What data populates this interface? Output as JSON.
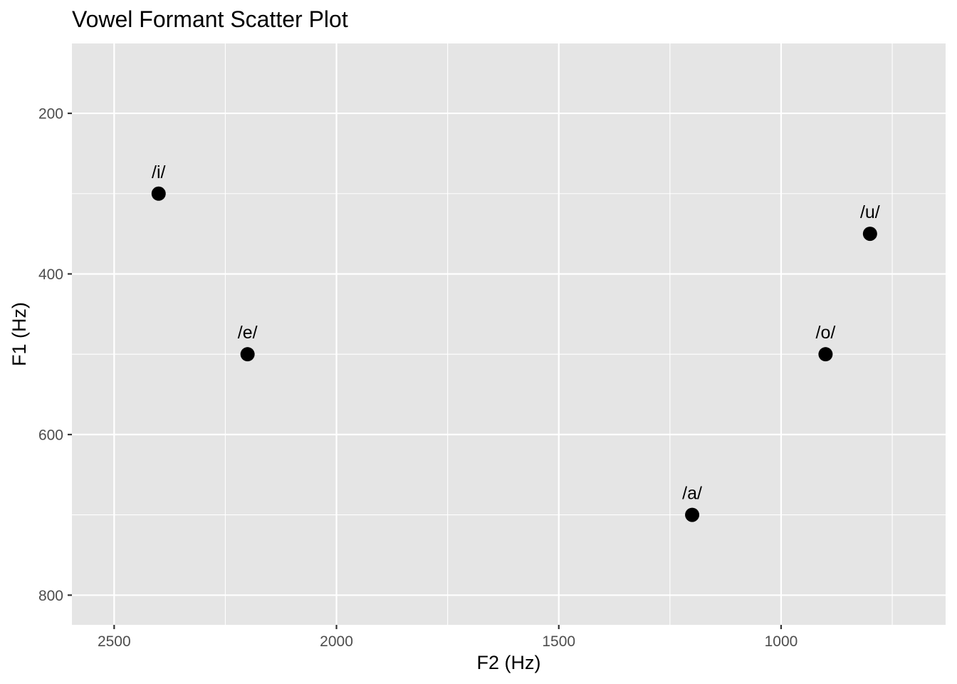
{
  "chart_data": {
    "type": "scatter",
    "title": "Vowel Formant Scatter Plot",
    "xlabel": "F2 (Hz)",
    "ylabel": "F1 (Hz)",
    "x_reversed": true,
    "y_reversed": true,
    "xlim": [
      2595,
      630
    ],
    "ylim": [
      113,
      837
    ],
    "x_ticks": [
      2500,
      2000,
      1500,
      1000
    ],
    "y_ticks": [
      200,
      400,
      600,
      800
    ],
    "grid": true,
    "points": [
      {
        "label": "/i/",
        "x": 2400,
        "y": 300
      },
      {
        "label": "/e/",
        "x": 2200,
        "y": 500
      },
      {
        "label": "/a/",
        "x": 1200,
        "y": 700
      },
      {
        "label": "/o/",
        "x": 900,
        "y": 500
      },
      {
        "label": "/u/",
        "x": 800,
        "y": 350
      }
    ],
    "colors": {
      "panel_background": "#e5e5e5",
      "grid": "#ffffff",
      "point": "#000000",
      "tick_label": "#4d4d4d"
    }
  }
}
